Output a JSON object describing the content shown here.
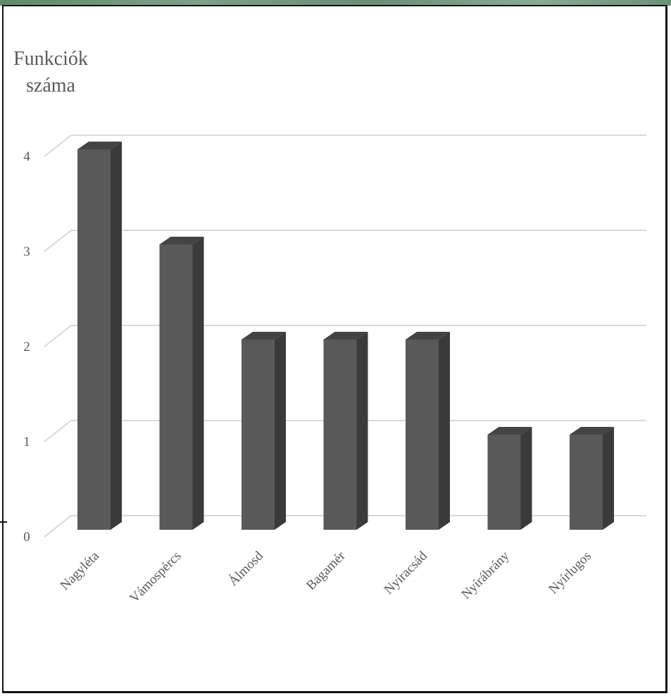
{
  "chart_data": {
    "type": "bar",
    "style": "3d-column",
    "ylabel_lines": [
      "Funkciók",
      "száma"
    ],
    "xlabel": "",
    "categories": [
      "Nagyléta",
      "Vámospércs",
      "Álmosd",
      "Bagamér",
      "Nyíracsád",
      "Nyírábrány",
      "Nyírlugos"
    ],
    "values": [
      4,
      3,
      2,
      2,
      2,
      1,
      1
    ],
    "ylim": [
      0,
      4
    ],
    "yticks": [
      "0",
      "1",
      "2",
      "3",
      "4"
    ],
    "grid": true,
    "bar_colors": {
      "front": "#595959",
      "side": "#3a3a3a",
      "top": "#444444"
    },
    "gridline_color": "#d9d9d9"
  }
}
